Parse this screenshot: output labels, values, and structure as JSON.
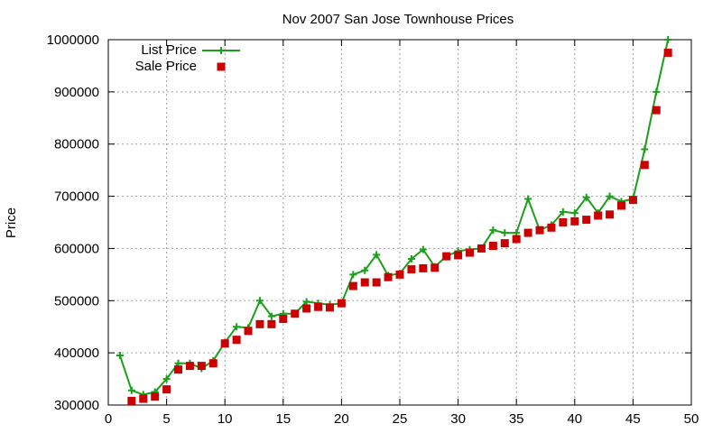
{
  "chart_data": {
    "type": "line",
    "title": "Nov 2007 San Jose Townhouse Prices",
    "xlabel": "",
    "ylabel": "Price",
    "xlim": [
      0,
      50
    ],
    "ylim": [
      300000,
      1000000
    ],
    "x_ticks": [
      0,
      5,
      10,
      15,
      20,
      25,
      30,
      35,
      40,
      45,
      50
    ],
    "y_ticks": [
      300000,
      400000,
      500000,
      600000,
      700000,
      800000,
      900000,
      1000000
    ],
    "grid": true,
    "legend_position": "top-left",
    "series": [
      {
        "name": "List Price",
        "style": "linespoints",
        "marker": "plus",
        "color": "#1aa01a",
        "x": [
          1,
          2,
          3,
          4,
          5,
          6,
          7,
          8,
          9,
          10,
          11,
          12,
          13,
          14,
          15,
          16,
          17,
          18,
          19,
          20,
          21,
          22,
          23,
          24,
          25,
          26,
          27,
          28,
          29,
          30,
          31,
          32,
          33,
          34,
          35,
          36,
          37,
          38,
          39,
          40,
          41,
          42,
          43,
          44,
          45,
          46,
          47,
          48
        ],
        "y": [
          395000,
          328000,
          320000,
          325000,
          350000,
          380000,
          380000,
          370000,
          385000,
          420000,
          450000,
          448000,
          500000,
          470000,
          475000,
          475000,
          498000,
          495000,
          492000,
          495000,
          550000,
          558000,
          588000,
          548000,
          552000,
          580000,
          598000,
          565000,
          585000,
          595000,
          598000,
          600000,
          635000,
          630000,
          630000,
          695000,
          635000,
          645000,
          670000,
          668000,
          698000,
          668000,
          700000,
          690000,
          695000,
          790000,
          900000,
          1000000
        ]
      },
      {
        "name": "Sale Price",
        "style": "points",
        "marker": "square",
        "color": "#cc0000",
        "x": [
          2,
          3,
          4,
          5,
          6,
          7,
          8,
          9,
          10,
          11,
          12,
          13,
          14,
          15,
          16,
          17,
          18,
          19,
          20,
          21,
          22,
          23,
          24,
          25,
          26,
          27,
          28,
          29,
          30,
          31,
          32,
          33,
          34,
          35,
          36,
          37,
          38,
          39,
          40,
          41,
          42,
          43,
          44,
          45,
          46,
          47,
          48
        ],
        "y": [
          308000,
          312000,
          316000,
          330000,
          368000,
          375000,
          375000,
          380000,
          418000,
          425000,
          442000,
          455000,
          455000,
          465000,
          475000,
          485000,
          488000,
          487000,
          495000,
          528000,
          535000,
          535000,
          545000,
          550000,
          560000,
          562000,
          563000,
          585000,
          587000,
          592000,
          600000,
          605000,
          610000,
          618000,
          630000,
          635000,
          640000,
          650000,
          652000,
          655000,
          663000,
          665000,
          682000,
          693000,
          760000,
          865000,
          975000
        ]
      }
    ]
  }
}
